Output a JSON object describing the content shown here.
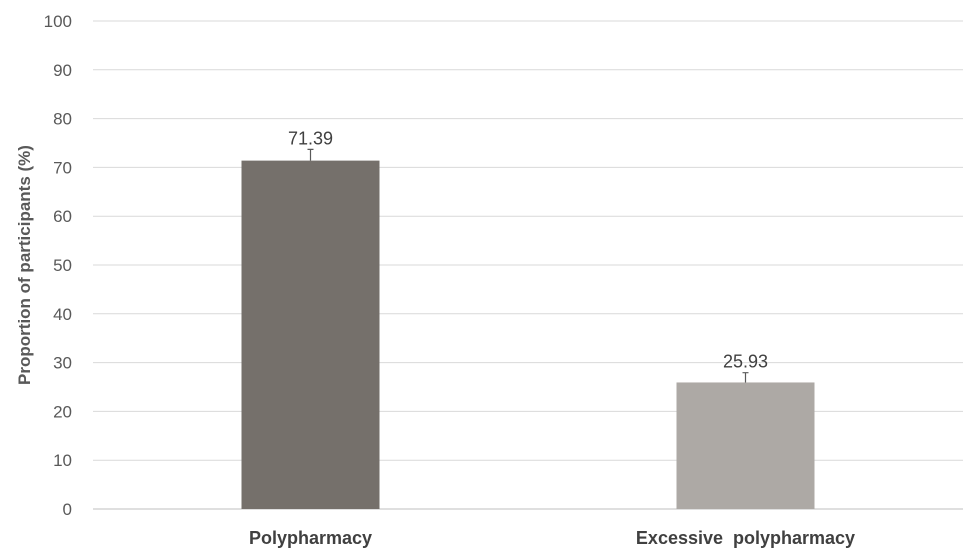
{
  "chart_data": {
    "type": "bar",
    "title": "",
    "xlabel": "",
    "ylabel": "Proportion of participants (%)",
    "ylim": [
      0,
      100
    ],
    "yticks": [
      0,
      10,
      20,
      30,
      40,
      50,
      60,
      70,
      80,
      90,
      100
    ],
    "grid": true,
    "categories": [
      "Polypharmacy",
      "Excessive  polypharmacy"
    ],
    "values": [
      71.39,
      25.93
    ],
    "value_labels": [
      "71.39",
      "25.93"
    ],
    "error_upper": [
      2.3,
      2.0
    ],
    "colors": [
      "#75706b",
      "#ada9a5"
    ]
  }
}
